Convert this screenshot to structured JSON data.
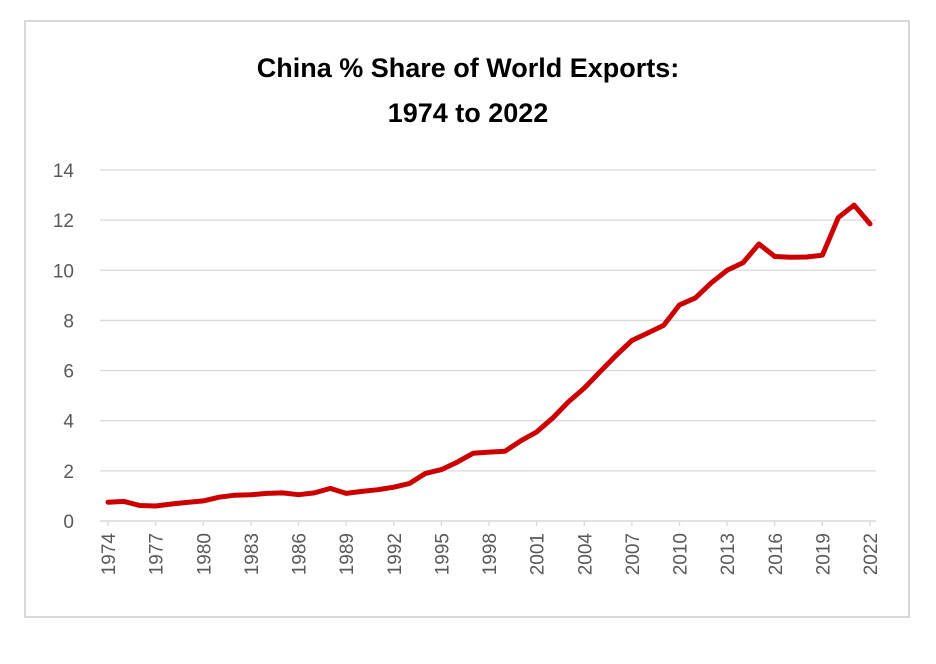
{
  "chart_data": {
    "type": "line",
    "title_lines": [
      "China % Share of World Exports:",
      "1974 to 2022"
    ],
    "xlabel": "",
    "ylabel": "",
    "ylim": [
      0,
      14
    ],
    "yticks": [
      0,
      2,
      4,
      6,
      8,
      10,
      12,
      14
    ],
    "xlim": [
      1974,
      2022
    ],
    "xtick_labels": [
      "1974",
      "1977",
      "1980",
      "1983",
      "1986",
      "1989",
      "1992",
      "1995",
      "1998",
      "2001",
      "2004",
      "2007",
      "2010",
      "2013",
      "2016",
      "2019",
      "2022"
    ],
    "grid": "horizontal",
    "legend": "none",
    "line_color": "#cc0000",
    "series": [
      {
        "x": [
          1974,
          1975,
          1976,
          1977,
          1978,
          1979,
          1980,
          1981,
          1982,
          1983,
          1984,
          1985,
          1986,
          1987,
          1988,
          1989,
          1990,
          1991,
          1992,
          1993,
          1994,
          1995,
          1996,
          1997,
          1998,
          1999,
          2000,
          2001,
          2002,
          2003,
          2004,
          2005,
          2006,
          2007,
          2008,
          2009,
          2010,
          2011,
          2012,
          2013,
          2014,
          2015,
          2016,
          2017,
          2018,
          2019,
          2020,
          2021,
          2022
        ],
        "values": [
          0.75,
          0.78,
          0.62,
          0.6,
          0.68,
          0.74,
          0.8,
          0.95,
          1.03,
          1.05,
          1.1,
          1.12,
          1.05,
          1.12,
          1.3,
          1.1,
          1.18,
          1.25,
          1.35,
          1.5,
          1.9,
          2.05,
          2.35,
          2.7,
          2.75,
          2.78,
          3.2,
          3.55,
          4.1,
          4.75,
          5.3,
          5.95,
          6.6,
          7.2,
          7.5,
          7.8,
          8.62,
          8.9,
          9.5,
          10.0,
          10.3,
          11.05,
          10.55,
          10.52,
          10.53,
          10.6,
          12.1,
          12.6,
          11.85
        ]
      }
    ]
  }
}
